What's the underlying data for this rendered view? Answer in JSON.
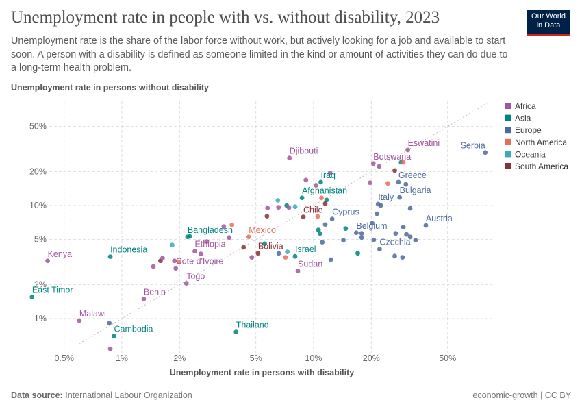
{
  "title": "Unemployment rate in people with vs. without disability, 2023",
  "subtitle": "Unemployment rate is the share of the labor force without work, but actively looking for a job and available to start soon. A person with a disability is defined as someone limited in the kind or amount of activities they can do due to a long-term health problem.",
  "logo": {
    "line1": "Our World",
    "line2": "in Data"
  },
  "footer": {
    "source_label": "Data source:",
    "source": "International Labour Organization",
    "right": "economic-growth | CC BY"
  },
  "chart_data": {
    "type": "scatter",
    "xlabel": "Unemployment rate in persons with disability",
    "ylabel": "Unemployment rate in persons without disability",
    "xscale": "log",
    "yscale": "log",
    "xlim": [
      0.3,
      85
    ],
    "ylim": [
      0.5,
      85
    ],
    "xticks": [
      0.5,
      1,
      2,
      5,
      10,
      20,
      50
    ],
    "yticks": [
      1,
      2,
      5,
      10,
      20,
      50
    ],
    "tick_suffix": "%",
    "grid": true,
    "reference_line": "y = x (dotted)",
    "legend_position": "right",
    "series": [
      {
        "name": "Africa",
        "color": "#a2559c"
      },
      {
        "name": "Asia",
        "color": "#00847e"
      },
      {
        "name": "Europe",
        "color": "#4c6a9c"
      },
      {
        "name": "North America",
        "color": "#e56e5a"
      },
      {
        "name": "Oceania",
        "color": "#38aaba"
      },
      {
        "name": "South America",
        "color": "#883039"
      }
    ],
    "points": [
      {
        "x": 0.41,
        "y": 3.24,
        "region": "Africa",
        "label": "Kenya"
      },
      {
        "x": 0.87,
        "y": 3.53,
        "region": "Asia",
        "label": "Indonesia"
      },
      {
        "x": 0.34,
        "y": 1.55,
        "region": "Asia",
        "label": "East Timor"
      },
      {
        "x": 0.6,
        "y": 0.96,
        "region": "Africa",
        "label": "Malawi"
      },
      {
        "x": 0.86,
        "y": 0.91,
        "region": "Europe"
      },
      {
        "x": 0.91,
        "y": 0.7,
        "region": "Asia",
        "label": "Cambodia"
      },
      {
        "x": 0.87,
        "y": 0.54,
        "region": "Africa"
      },
      {
        "x": 1.3,
        "y": 1.49,
        "region": "Africa",
        "label": "Benin"
      },
      {
        "x": 2.17,
        "y": 2.05,
        "region": "Africa",
        "label": "Togo"
      },
      {
        "x": 1.91,
        "y": 2.78,
        "region": "Africa",
        "label": "Cote d'Ivoire"
      },
      {
        "x": 1.88,
        "y": 3.24,
        "region": "Africa"
      },
      {
        "x": 1.99,
        "y": 3.17,
        "region": "North America"
      },
      {
        "x": 1.46,
        "y": 2.89,
        "region": "Africa"
      },
      {
        "x": 1.59,
        "y": 3.24,
        "region": "South America"
      },
      {
        "x": 1.63,
        "y": 3.43,
        "region": "Africa"
      },
      {
        "x": 1.83,
        "y": 4.47,
        "region": "Oceania"
      },
      {
        "x": 2.2,
        "y": 5.28,
        "region": "Asia",
        "label": "Bangladesh"
      },
      {
        "x": 2.26,
        "y": 5.33,
        "region": "Asia"
      },
      {
        "x": 2.4,
        "y": 3.94,
        "region": "Africa",
        "label": "Ethiopia"
      },
      {
        "x": 2.58,
        "y": 3.73,
        "region": "Africa"
      },
      {
        "x": 2.77,
        "y": 4.8,
        "region": "Africa"
      },
      {
        "x": 3.4,
        "y": 6.51,
        "region": "Africa"
      },
      {
        "x": 3.75,
        "y": 6.74,
        "region": "North America"
      },
      {
        "x": 3.63,
        "y": 5.21,
        "region": "Africa"
      },
      {
        "x": 3.94,
        "y": 0.76,
        "region": "Asia",
        "label": "Thailand"
      },
      {
        "x": 7.48,
        "y": 26.3,
        "region": "Africa",
        "label": "Djibouti"
      },
      {
        "x": 9.12,
        "y": 16.8,
        "region": "Africa"
      },
      {
        "x": 10.9,
        "y": 16.1,
        "region": "Asia",
        "label": "Iraq"
      },
      {
        "x": 10.3,
        "y": 15.1,
        "region": "Africa"
      },
      {
        "x": 12.2,
        "y": 19.4,
        "region": "Africa"
      },
      {
        "x": 19.7,
        "y": 15.9,
        "region": "Africa"
      },
      {
        "x": 20.5,
        "y": 23.5,
        "region": "Africa",
        "label": "Botswana"
      },
      {
        "x": 22.0,
        "y": 22.2,
        "region": "Africa"
      },
      {
        "x": 8.7,
        "y": 11.7,
        "region": "Asia",
        "label": "Afghanistan"
      },
      {
        "x": 6.51,
        "y": 11.1,
        "region": "Oceania"
      },
      {
        "x": 11.0,
        "y": 11.7,
        "region": "North America"
      },
      {
        "x": 11.7,
        "y": 11.2,
        "region": "Asia"
      },
      {
        "x": 11.5,
        "y": 10.4,
        "region": "South America"
      },
      {
        "x": 5.75,
        "y": 9.5,
        "region": "Africa"
      },
      {
        "x": 6.56,
        "y": 9.63,
        "region": "Africa"
      },
      {
        "x": 7.24,
        "y": 10.0,
        "region": "Asia"
      },
      {
        "x": 7.44,
        "y": 9.59,
        "region": "Africa"
      },
      {
        "x": 8.01,
        "y": 9.77,
        "region": "Oceania"
      },
      {
        "x": 5.71,
        "y": 8.04,
        "region": "South America"
      },
      {
        "x": 8.84,
        "y": 7.92,
        "region": "South America",
        "label": "Chile"
      },
      {
        "x": 10.5,
        "y": 8.0,
        "region": "North America"
      },
      {
        "x": 12.5,
        "y": 7.6,
        "region": "Europe",
        "label": "Cyprus"
      },
      {
        "x": 11.5,
        "y": 6.79,
        "region": "Europe"
      },
      {
        "x": 10.6,
        "y": 6.08,
        "region": "Asia"
      },
      {
        "x": 10.8,
        "y": 5.67,
        "region": "Asia"
      },
      {
        "x": 14.7,
        "y": 6.25,
        "region": "Asia"
      },
      {
        "x": 11.1,
        "y": 4.73,
        "region": "Europe"
      },
      {
        "x": 14.3,
        "y": 4.93,
        "region": "Europe"
      },
      {
        "x": 16.7,
        "y": 5.74,
        "region": "Europe",
        "label": "Belgium"
      },
      {
        "x": 17.8,
        "y": 5.67,
        "region": "Europe"
      },
      {
        "x": 17.8,
        "y": 5.21,
        "region": "Europe"
      },
      {
        "x": 20.6,
        "y": 4.96,
        "region": "Europe"
      },
      {
        "x": 20.2,
        "y": 6.96,
        "region": "Europe"
      },
      {
        "x": 5.13,
        "y": 3.78,
        "region": "South America",
        "label": "Bolivia"
      },
      {
        "x": 4.31,
        "y": 4.27,
        "region": "South America"
      },
      {
        "x": 5.56,
        "y": 4.58,
        "region": "Asia"
      },
      {
        "x": 4.59,
        "y": 5.28,
        "region": "North America",
        "label": "Mexico"
      },
      {
        "x": 4.76,
        "y": 3.48,
        "region": "Africa"
      },
      {
        "x": 6.58,
        "y": 3.77,
        "region": "Europe"
      },
      {
        "x": 7.3,
        "y": 3.89,
        "region": "Oceania"
      },
      {
        "x": 7.14,
        "y": 3.48,
        "region": "North America"
      },
      {
        "x": 8.01,
        "y": 3.55,
        "region": "Asia",
        "label": "Israel"
      },
      {
        "x": 8.28,
        "y": 2.63,
        "region": "Africa",
        "label": "Sudan"
      },
      {
        "x": 12.3,
        "y": 3.32,
        "region": "Europe"
      },
      {
        "x": 17.0,
        "y": 3.78,
        "region": "Asia"
      },
      {
        "x": 31.0,
        "y": 31.0,
        "region": "Africa",
        "label": "Eswatini"
      },
      {
        "x": 78.6,
        "y": 29.4,
        "region": "Europe",
        "label": "Serbia"
      },
      {
        "x": 28.6,
        "y": 24.1,
        "region": "Asia"
      },
      {
        "x": 29.4,
        "y": 24.1,
        "region": "North America"
      },
      {
        "x": 26.5,
        "y": 20.4,
        "region": "South America"
      },
      {
        "x": 24.4,
        "y": 15.7,
        "region": "North America"
      },
      {
        "x": 27.7,
        "y": 16.1,
        "region": "Europe",
        "label": "Greece"
      },
      {
        "x": 30.3,
        "y": 15.4,
        "region": "Europe"
      },
      {
        "x": 28.1,
        "y": 11.8,
        "region": "Europe",
        "label": "Bulgaria"
      },
      {
        "x": 21.7,
        "y": 10.3,
        "region": "Europe",
        "label": "Italy"
      },
      {
        "x": 22.4,
        "y": 10.0,
        "region": "Europe"
      },
      {
        "x": 31.9,
        "y": 9.46,
        "region": "Europe"
      },
      {
        "x": 21.4,
        "y": 8.46,
        "region": "Europe"
      },
      {
        "x": 38.5,
        "y": 6.67,
        "region": "Europe",
        "label": "Austria"
      },
      {
        "x": 29.4,
        "y": 6.43,
        "region": "Europe"
      },
      {
        "x": 26.8,
        "y": 5.67,
        "region": "Europe"
      },
      {
        "x": 30.5,
        "y": 5.56,
        "region": "Europe"
      },
      {
        "x": 31.9,
        "y": 5.28,
        "region": "Europe"
      },
      {
        "x": 34.0,
        "y": 4.93,
        "region": "Europe"
      },
      {
        "x": 22.1,
        "y": 4.11,
        "region": "Europe",
        "label": "Czechia"
      },
      {
        "x": 26.5,
        "y": 3.57,
        "region": "Europe"
      },
      {
        "x": 29.1,
        "y": 3.48,
        "region": "Europe"
      }
    ]
  }
}
